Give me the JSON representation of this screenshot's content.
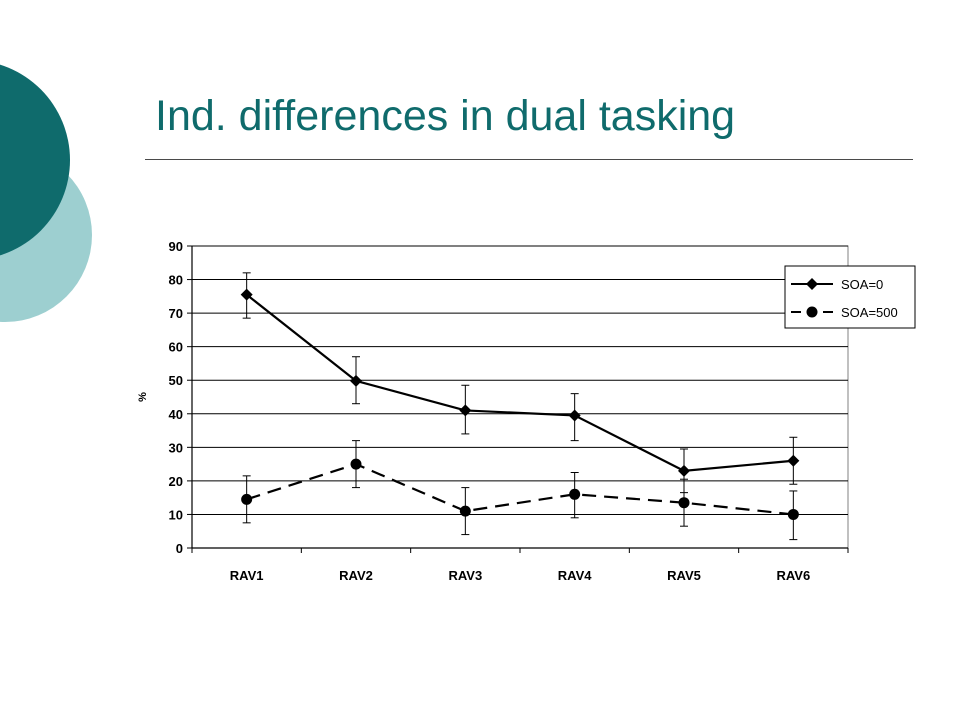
{
  "slide": {
    "title": "Ind. differences in dual tasking"
  },
  "colors": {
    "title": "#0f6b6c",
    "circle_dark": "#0f6b6c",
    "circle_light": "#9dcfd0",
    "series_line": "#000000"
  },
  "chart_data": {
    "type": "line",
    "categories": [
      "RAV1",
      "RAV2",
      "RAV3",
      "RAV4",
      "RAV5",
      "RAV6"
    ],
    "ylabel": "%",
    "ylim": [
      0,
      90
    ],
    "yticks": [
      "0",
      "10",
      "20",
      "30",
      "40",
      "50",
      "60",
      "70",
      "80",
      "90"
    ],
    "grid": true,
    "legend_position": "top-right",
    "series": [
      {
        "name": "SOA=0",
        "marker": "diamond",
        "dash": "solid",
        "values": [
          75.5,
          49.8,
          41,
          39.5,
          23,
          26
        ],
        "err_upper": [
          82,
          57,
          48.5,
          46,
          29.5,
          33
        ],
        "err_lower": [
          68.5,
          43,
          34,
          32,
          16.5,
          19
        ]
      },
      {
        "name": "SOA=500",
        "marker": "circle",
        "dash": "dashed",
        "values": [
          14.5,
          25,
          11,
          16,
          13.5,
          10
        ],
        "err_upper": [
          21.5,
          32,
          18,
          22.5,
          20.5,
          17
        ],
        "err_lower": [
          7.5,
          18,
          4,
          9,
          6.5,
          2.5
        ]
      }
    ]
  }
}
